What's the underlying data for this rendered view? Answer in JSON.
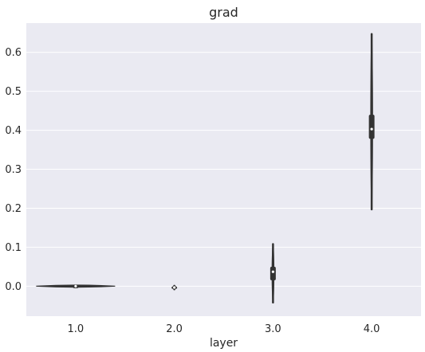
{
  "chart_data": {
    "type": "violin",
    "title": "grad",
    "xlabel": "layer",
    "ylabel": "",
    "categories": [
      "1.0",
      "2.0",
      "3.0",
      "4.0"
    ],
    "ylim": [
      -0.077,
      0.675
    ],
    "yticks": [
      0.0,
      0.1,
      0.2,
      0.3,
      0.4,
      0.5,
      0.6
    ],
    "ytick_labels": [
      "0.0",
      "0.1",
      "0.2",
      "0.3",
      "0.4",
      "0.5",
      "0.6"
    ],
    "grid": true,
    "legend": false,
    "series": [
      {
        "category": "1.0",
        "min": -0.0015,
        "q1": -0.0008,
        "median": 0.0,
        "q3": 0.0008,
        "max": 0.0015,
        "max_halfwidth": 0.8
      },
      {
        "category": "2.0",
        "min": -0.008,
        "q1": -0.0055,
        "median": -0.0035,
        "q3": -0.001,
        "max": 0.001,
        "max_halfwidth": 0.035
      },
      {
        "category": "3.0",
        "min": -0.042,
        "q1": 0.015,
        "median": 0.037,
        "q3": 0.05,
        "max": 0.108,
        "max_halfwidth": 0.02
      },
      {
        "category": "4.0",
        "min": 0.197,
        "q1": 0.378,
        "median": 0.403,
        "q3": 0.44,
        "max": 0.647,
        "max_halfwidth": 0.02
      }
    ],
    "colors": {
      "plot_background": "#eaeaf2",
      "grid": "#ffffff",
      "violin_body": "#333333",
      "box": "#333333",
      "median": "#ffffff",
      "text": "#262626"
    }
  }
}
